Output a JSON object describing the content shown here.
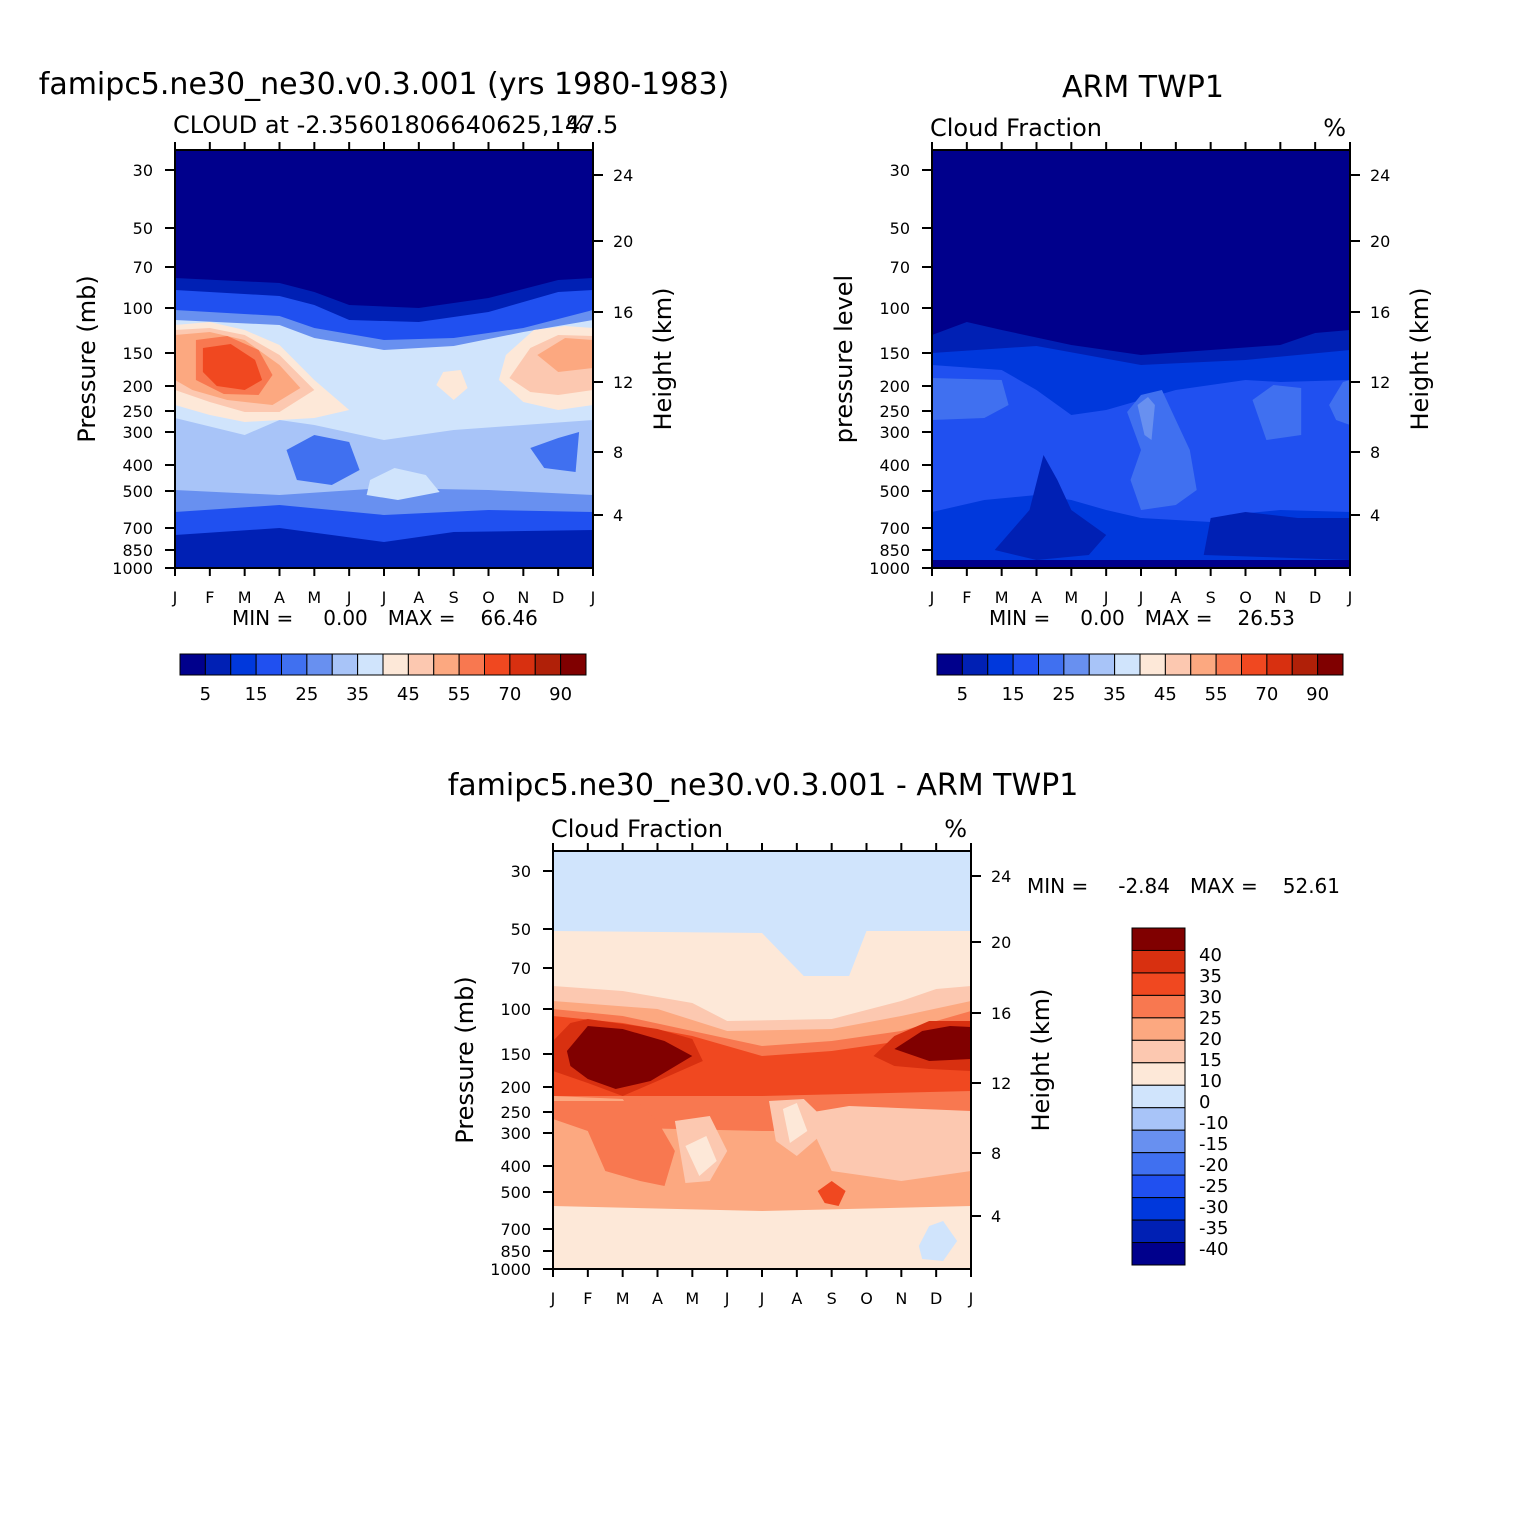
{
  "chart_data": [
    {
      "type": "heatmap",
      "title": "famipc5.ne30_ne30.v0.3.001 (yrs 1980-1983)",
      "subtitle_left": "CLOUD at -2.35601806640625,147.5",
      "subtitle_right": "%",
      "ylabel": "Pressure (mb)",
      "ylabel_right": "Height (km)",
      "x_ticks": [
        "J",
        "F",
        "M",
        "A",
        "M",
        "J",
        "J",
        "A",
        "S",
        "O",
        "N",
        "D",
        "J"
      ],
      "y_ticks": [
        "30",
        "50",
        "70",
        "100",
        "150",
        "200",
        "250",
        "300",
        "400",
        "500",
        "700",
        "850",
        "1000"
      ],
      "y_right_ticks": [
        "24",
        "20",
        "16",
        "12",
        "8",
        "4"
      ],
      "stats": {
        "min_label": "MIN =",
        "min": "0.00",
        "max_label": "MAX =",
        "max": "66.46"
      },
      "colorbar_labels": [
        "5",
        "15",
        "25",
        "35",
        "45",
        "55",
        "70",
        "90"
      ]
    },
    {
      "type": "heatmap",
      "title": "ARM TWP1",
      "subtitle_left": "Cloud Fraction",
      "subtitle_right": "%",
      "ylabel": "pressure level",
      "ylabel_right": "Height (km)",
      "x_ticks": [
        "J",
        "F",
        "M",
        "A",
        "M",
        "J",
        "J",
        "A",
        "S",
        "O",
        "N",
        "D",
        "J"
      ],
      "y_ticks": [
        "30",
        "50",
        "70",
        "100",
        "150",
        "200",
        "250",
        "300",
        "400",
        "500",
        "700",
        "850",
        "1000"
      ],
      "y_right_ticks": [
        "24",
        "20",
        "16",
        "12",
        "8",
        "4"
      ],
      "stats": {
        "min_label": "MIN =",
        "min": "0.00",
        "max_label": "MAX =",
        "max": "26.53"
      },
      "colorbar_labels": [
        "5",
        "15",
        "25",
        "35",
        "45",
        "55",
        "70",
        "90"
      ]
    },
    {
      "type": "heatmap",
      "title": "famipc5.ne30_ne30.v0.3.001 - ARM TWP1",
      "subtitle_left": "Cloud Fraction",
      "subtitle_right": "%",
      "ylabel": "Pressure (mb)",
      "ylabel_right": "Height (km)",
      "x_ticks": [
        "J",
        "F",
        "M",
        "A",
        "M",
        "J",
        "J",
        "A",
        "S",
        "O",
        "N",
        "D",
        "J"
      ],
      "y_ticks": [
        "30",
        "50",
        "70",
        "100",
        "150",
        "200",
        "250",
        "300",
        "400",
        "500",
        "700",
        "850",
        "1000"
      ],
      "y_right_ticks": [
        "24",
        "20",
        "16",
        "12",
        "8",
        "4"
      ],
      "stats": {
        "min_label": "MIN =",
        "min": "-2.84",
        "max_label": "MAX =",
        "max": "52.61"
      },
      "colorbar_labels": [
        "40",
        "35",
        "30",
        "25",
        "20",
        "15",
        "10",
        "0",
        "-10",
        "-15",
        "-20",
        "-25",
        "-30",
        "-35",
        "-40"
      ]
    }
  ],
  "palette": [
    "#00008c",
    "#0020b4",
    "#0038dc",
    "#2050f0",
    "#4070f0",
    "#6890f0",
    "#a8c4f8",
    "#d0e4fc",
    "#fde8d8",
    "#fcc8b0",
    "#fca880",
    "#f87850",
    "#f04820",
    "#d83010",
    "#b02008",
    "#800000"
  ]
}
